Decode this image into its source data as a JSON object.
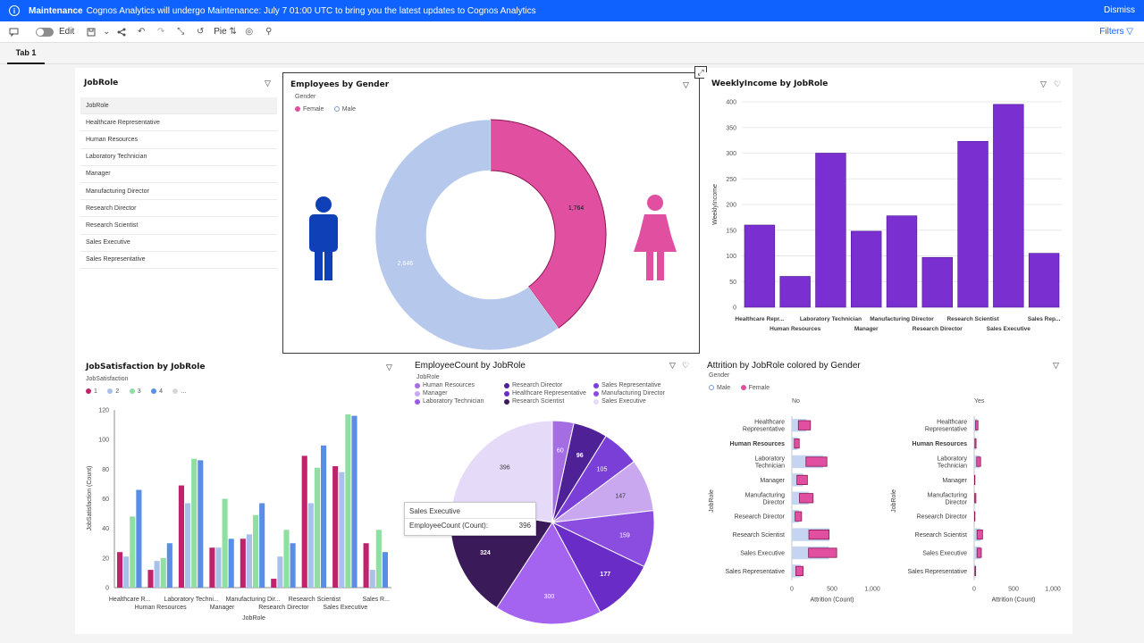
{
  "banner": {
    "title": "Maintenance",
    "message": "Cognos Analytics will undergo Maintenance: July 7 01:00 UTC to bring you the latest updates to Cognos Analytics",
    "dismiss": "Dismiss"
  },
  "toolbar": {
    "edit_label": "Edit",
    "viz_label": "Pie",
    "filters_label": "Filters"
  },
  "tabs": [
    {
      "label": "Tab 1"
    }
  ],
  "jobrole_panel": {
    "title": "JobRole",
    "header": "JobRole",
    "items": [
      "Healthcare Representative",
      "Human Resources",
      "Laboratory Technician",
      "Manager",
      "Manufacturing Director",
      "Research Director",
      "Research Scientist",
      "Sales Executive",
      "Sales Representative"
    ]
  },
  "gender_panel": {
    "title": "Employees by Gender",
    "legend_title": "Gender",
    "legend": [
      {
        "label": "Female",
        "color": "#e04fa0"
      },
      {
        "label": "Male",
        "color": "#b6c8ec"
      }
    ],
    "chart_data": {
      "type": "pie",
      "donut": true,
      "labels": [
        "Female",
        "Male"
      ],
      "values": [
        1764,
        2646
      ],
      "value_labels": [
        "1,764",
        "2,646"
      ],
      "colors": [
        "#e04fa0",
        "#b6c8ec"
      ]
    }
  },
  "income_panel": {
    "title": "WeeklyIncome by JobRole",
    "chart_data": {
      "type": "bar",
      "ylabel": "WeeklyIncome",
      "ylim": [
        0,
        400
      ],
      "yticks": [
        0,
        50,
        100,
        150,
        200,
        250,
        300,
        350,
        400
      ],
      "categories": [
        "Healthcare Repr...",
        "Human Resources",
        "Laboratory Technician",
        "Manager",
        "Manufacturing Director",
        "Research Director",
        "Research Scientist",
        "Sales Executive",
        "Sales Rep..."
      ],
      "values": [
        160,
        60,
        300,
        148,
        178,
        97,
        323,
        395,
        105
      ],
      "color": "#7a2fd0"
    }
  },
  "satisfaction_panel": {
    "title": "JobSatisfaction by JobRole",
    "legend_title": "JobSatisfaction",
    "legend": [
      {
        "label": "1",
        "color": "#c0226b"
      },
      {
        "label": "2",
        "color": "#a9c1ea"
      },
      {
        "label": "3",
        "color": "#8fe0a0"
      },
      {
        "label": "4",
        "color": "#5a8ee6"
      },
      {
        "label": "...",
        "color": "#d8d8d8"
      }
    ],
    "chart_data": {
      "type": "bar",
      "xlabel": "JobRole",
      "ylabel": "JobSatisfaction (Count)",
      "ylim": [
        0,
        120
      ],
      "yticks": [
        0,
        20,
        40,
        60,
        80,
        100,
        120
      ],
      "categories": [
        "Healthcare R...",
        "Human Resources",
        "Laboratory Techni...",
        "Manager",
        "Manufacturing Dir...",
        "Research Director",
        "Research Scientist",
        "Sales Executive",
        "Sales R..."
      ],
      "series": [
        {
          "name": "1",
          "values": [
            24,
            12,
            69,
            27,
            33,
            6,
            89,
            82,
            30
          ]
        },
        {
          "name": "2",
          "values": [
            21,
            18,
            57,
            27,
            36,
            21,
            57,
            78,
            12
          ]
        },
        {
          "name": "3",
          "values": [
            48,
            20,
            87,
            60,
            49,
            39,
            81,
            117,
            39
          ]
        },
        {
          "name": "4",
          "values": [
            66,
            30,
            86,
            33,
            57,
            30,
            96,
            116,
            24
          ]
        }
      ]
    }
  },
  "count_panel": {
    "title": "EmployeeCount by JobRole",
    "legend_title": "JobRole",
    "legend": [
      {
        "label": "Human Resources",
        "color": "#a56de2"
      },
      {
        "label": "Research Director",
        "color": "#4f2196"
      },
      {
        "label": "Sales Representative",
        "color": "#7a3fd6"
      },
      {
        "label": "Manager",
        "color": "#c9a8f0"
      },
      {
        "label": "Healthcare Representative",
        "color": "#6a2cc7"
      },
      {
        "label": "Manufacturing Director",
        "color": "#8a4de0"
      },
      {
        "label": "Laboratory Technician",
        "color": "#9b5be8"
      },
      {
        "label": "Research Scientist",
        "color": "#3b1a5a"
      },
      {
        "label": "Sales Executive",
        "color": "#e6daf9"
      }
    ],
    "chart_data": {
      "type": "pie",
      "labels": [
        "Human Resources",
        "Research Director",
        "Sales Representative",
        "Manager",
        "Manufacturing Director",
        "Healthcare Representative",
        "Laboratory Technician",
        "Research Scientist",
        "Sales Executive"
      ],
      "values": [
        60,
        96,
        105,
        147,
        159,
        177,
        300,
        324,
        396
      ],
      "colors": [
        "#a56de2",
        "#4f2196",
        "#7a3fd6",
        "#c9a8f0",
        "#8a4de0",
        "#6a2cc7",
        "#a564f0",
        "#3b1a5a",
        "#e6daf9"
      ]
    },
    "tooltip": {
      "category": "Sales Executive",
      "measure": "EmployeeCount (Count):",
      "value": "396"
    }
  },
  "attrition_panel": {
    "title": "Attrition by JobRole colored by Gender",
    "legend_title": "Gender",
    "legend": [
      {
        "label": "Male",
        "color": "#b6c8ec"
      },
      {
        "label": "Female",
        "color": "#e04fa0"
      }
    ],
    "facets": [
      "No",
      "Yes"
    ],
    "chart_data": {
      "type": "bar",
      "orientation": "horizontal",
      "xlabel": "Attrition (Count)",
      "ylabel": "JobRole",
      "xlim": [
        0,
        1000
      ],
      "xticks": [
        0,
        500,
        1000
      ],
      "xtick_labels": [
        "0",
        "500",
        "1,000"
      ],
      "categories": [
        "Healthcare Representative",
        "Human Resources",
        "Laboratory Technician",
        "Manager",
        "Manufacturing Director",
        "Research Director",
        "Research Scientist",
        "Sales Executive",
        "Sales Representative"
      ],
      "series": [
        {
          "facet": "No",
          "name": "Male",
          "values": [
            180,
            70,
            390,
            140,
            210,
            90,
            470,
            460,
            110
          ]
        },
        {
          "facet": "No",
          "name": "Female",
          "values": [
            150,
            60,
            260,
            130,
            170,
            80,
            250,
            350,
            90
          ]
        },
        {
          "facet": "Yes",
          "name": "Male",
          "values": [
            40,
            20,
            70,
            10,
            15,
            10,
            80,
            80,
            20
          ]
        },
        {
          "facet": "Yes",
          "name": "Female",
          "values": [
            30,
            15,
            50,
            5,
            15,
            5,
            70,
            55,
            10
          ]
        }
      ]
    }
  }
}
